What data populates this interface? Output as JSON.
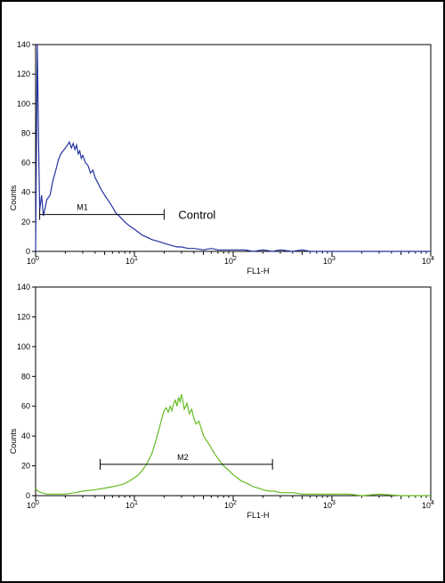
{
  "chart_data": [
    {
      "type": "line",
      "xlabel": "FL1-H",
      "ylabel": "Counts",
      "x_scale": "log",
      "xlim": [
        1,
        10000
      ],
      "ylim": [
        0,
        140
      ],
      "x_ticks": [
        {
          "base": "10",
          "exp": "0"
        },
        {
          "base": "10",
          "exp": "1"
        },
        {
          "base": "10",
          "exp": "2"
        },
        {
          "base": "10",
          "exp": "3"
        },
        {
          "base": "10",
          "exp": "4"
        }
      ],
      "y_ticks": [
        "0",
        "20",
        "40",
        "60",
        "80",
        "100",
        "120",
        "140"
      ],
      "color": "#2233a0",
      "series": [
        {
          "x": [
            1.0,
            1.04,
            1.08,
            1.1,
            1.15,
            1.2,
            1.3,
            1.4,
            1.5,
            1.6,
            1.7,
            1.8,
            1.9,
            2.0,
            2.1,
            2.2,
            2.3,
            2.4,
            2.5,
            2.6,
            2.7,
            2.8,
            2.9,
            3.0,
            3.2,
            3.4,
            3.6,
            3.8,
            4.0,
            4.3,
            4.6,
            5.0,
            5.5,
            6.0,
            6.5,
            7.0,
            8.0,
            9.0,
            10,
            11,
            12,
            13,
            14,
            15,
            17,
            19,
            21,
            24,
            27,
            30,
            35,
            40,
            50,
            60,
            70,
            80,
            100,
            130,
            160,
            200,
            250,
            300,
            400,
            500,
            600,
            800,
            1000,
            2000,
            5000,
            10000
          ],
          "y": [
            0,
            140,
            60,
            28,
            38,
            24,
            35,
            38,
            48,
            55,
            62,
            66,
            68,
            70,
            72,
            74,
            70,
            73,
            69,
            72,
            66,
            68,
            63,
            65,
            60,
            58,
            53,
            55,
            50,
            46,
            42,
            38,
            34,
            30,
            26,
            24,
            20,
            17,
            15,
            13,
            11,
            10,
            9,
            8,
            7,
            6,
            5,
            4,
            3,
            3,
            2,
            2,
            1,
            2,
            1,
            1,
            1,
            1,
            0,
            1,
            0,
            1,
            0,
            1,
            0,
            0,
            0,
            0,
            0,
            0
          ]
        }
      ],
      "markers": [
        {
          "label": "M1",
          "x_start": 1.1,
          "x_end": 20,
          "y": 25
        }
      ],
      "annotation": "Control"
    },
    {
      "type": "line",
      "xlabel": "FL1-H",
      "ylabel": "Counts",
      "x_scale": "log",
      "xlim": [
        1,
        10000
      ],
      "ylim": [
        0,
        140
      ],
      "x_ticks": [
        {
          "base": "10",
          "exp": "0"
        },
        {
          "base": "10",
          "exp": "1"
        },
        {
          "base": "10",
          "exp": "2"
        },
        {
          "base": "10",
          "exp": "3"
        },
        {
          "base": "10",
          "exp": "4"
        }
      ],
      "y_ticks": [
        "0",
        "20",
        "40",
        "60",
        "80",
        "100",
        "120",
        "140"
      ],
      "color": "#66bb22",
      "series": [
        {
          "x": [
            1.0,
            1.05,
            1.15,
            1.3,
            1.6,
            2.0,
            2.5,
            3.0,
            4.0,
            5.0,
            6.0,
            7.0,
            8.0,
            9.0,
            10,
            11,
            12,
            13,
            14,
            15,
            16,
            17,
            18,
            19,
            20,
            21,
            22,
            23,
            24,
            25,
            26,
            27,
            28,
            29,
            30,
            32,
            34,
            36,
            38,
            40,
            42,
            45,
            48,
            50,
            55,
            60,
            65,
            70,
            80,
            90,
            100,
            110,
            120,
            140,
            160,
            180,
            200,
            230,
            260,
            300,
            350,
            400,
            500,
            600,
            800,
            1000,
            1500,
            2000,
            3000,
            5000,
            10000
          ],
          "y": [
            5,
            3,
            2,
            1,
            1,
            1,
            2,
            3,
            4,
            5,
            6,
            7,
            8,
            10,
            12,
            14,
            17,
            20,
            24,
            28,
            34,
            40,
            46,
            52,
            57,
            59,
            56,
            60,
            57,
            62,
            64,
            60,
            66,
            63,
            68,
            58,
            62,
            55,
            58,
            52,
            48,
            50,
            44,
            40,
            36,
            32,
            28,
            25,
            20,
            17,
            14,
            12,
            10,
            8,
            6,
            5,
            4,
            3,
            3,
            2,
            2,
            2,
            1,
            1,
            1,
            1,
            1,
            0,
            1,
            0,
            0
          ]
        }
      ],
      "markers": [
        {
          "label": "M2",
          "x_start": 4.5,
          "x_end": 250,
          "y": 21
        }
      ]
    }
  ]
}
